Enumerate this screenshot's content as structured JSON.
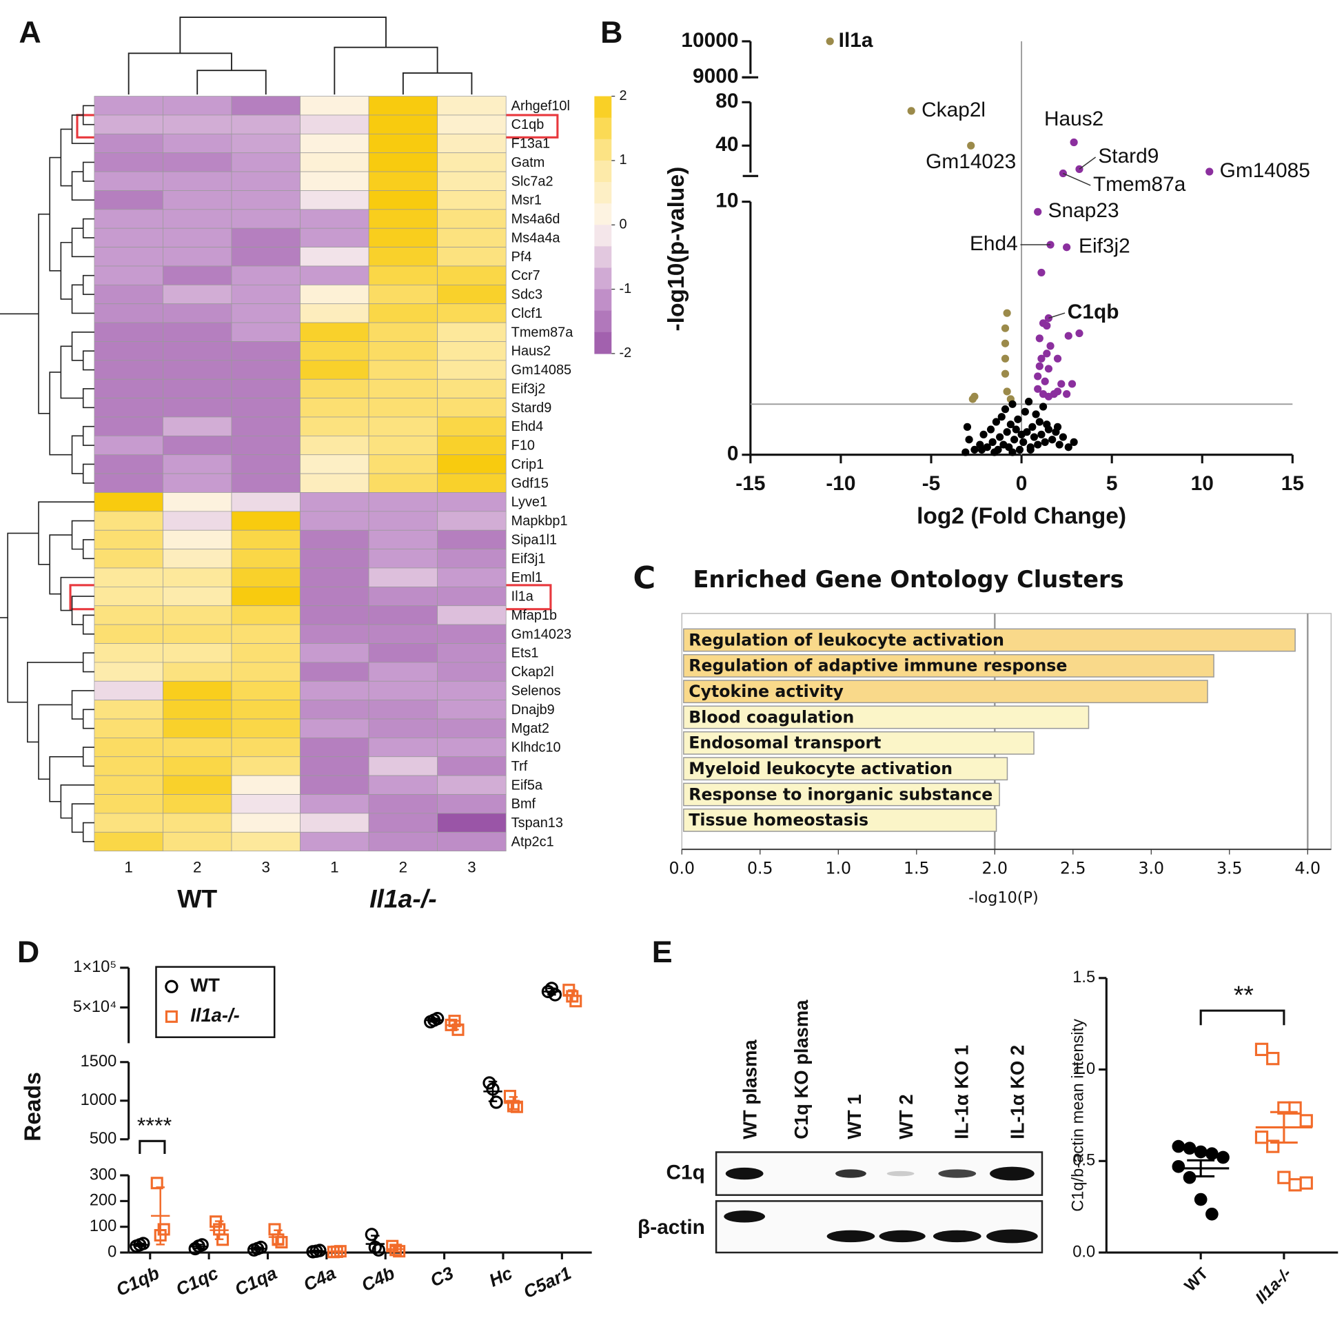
{
  "chart_data": [
    {
      "type": "heatmap",
      "panel": "A",
      "rows": [
        "Arhgef10l",
        "C1qb",
        "F13a1",
        "Gatm",
        "Slc7a2",
        "Msr1",
        "Ms4a6d",
        "Ms4a4a",
        "Pf4",
        "Ccr7",
        "Sdc3",
        "Clcf1",
        "Tmem87a",
        "Haus2",
        "Gm14085",
        "Eif3j2",
        "Stard9",
        "Ehd4",
        "F10",
        "Crip1",
        "Gdf15",
        "Lyve1",
        "Mapkbp1",
        "Sipa1l1",
        "Eif3j1",
        "Eml1",
        "Il1a",
        "Mfap1b",
        "Gm14023",
        "Ets1",
        "Ckap2l",
        "Selenos",
        "Dnajb9",
        "Mgat2",
        "Klhdc10",
        "Trf",
        "Eif5a",
        "Bmf",
        "Tspan13",
        "Atp2c1"
      ],
      "columns": [
        "1",
        "2",
        "3",
        "1",
        "2",
        "3"
      ],
      "groups": [
        "WT",
        "Il1a-/-"
      ],
      "values": [
        [
          -1,
          -1,
          -1.4,
          0.2,
          2,
          0.5
        ],
        [
          -0.8,
          -0.8,
          -0.8,
          -0.3,
          2,
          0.4
        ],
        [
          -1.2,
          -1,
          -0.9,
          0.2,
          2,
          0.6
        ],
        [
          -1.3,
          -1.3,
          -1,
          0.3,
          2,
          0.8
        ],
        [
          -1,
          -1,
          -1,
          0.2,
          1.9,
          0.8
        ],
        [
          -1.4,
          -1,
          -1,
          -0.2,
          2,
          1
        ],
        [
          -1,
          -1,
          -1,
          -1,
          1.9,
          1.2
        ],
        [
          -1,
          -1,
          -1.4,
          -1,
          1.9,
          1.2
        ],
        [
          -1,
          -1,
          -1.4,
          -0.2,
          1.8,
          1.2
        ],
        [
          -1,
          -1.4,
          -1,
          -1,
          1.6,
          1.6
        ],
        [
          -1.2,
          -0.8,
          -1,
          0.3,
          1.4,
          1.8
        ],
        [
          -1.2,
          -1.2,
          -1,
          0.6,
          1.6,
          1.5
        ],
        [
          -1.4,
          -1.4,
          -1,
          1.8,
          1.4,
          1
        ],
        [
          -1.4,
          -1.4,
          -1.4,
          1.6,
          1.4,
          1
        ],
        [
          -1.4,
          -1.4,
          -1.4,
          1.8,
          1.3,
          1
        ],
        [
          -1.4,
          -1.4,
          -1.4,
          1.4,
          1.3,
          1.2
        ],
        [
          -1.4,
          -1.4,
          -1.4,
          1.3,
          1.3,
          1.3
        ],
        [
          -1.4,
          -0.8,
          -1.4,
          1.2,
          1.2,
          1.6
        ],
        [
          -1,
          -1.4,
          -1.4,
          0.9,
          1.2,
          1.8
        ],
        [
          -1.4,
          -1,
          -1.4,
          0.5,
          1.3,
          2
        ],
        [
          -1.4,
          -1,
          -1.4,
          0.6,
          1.4,
          1.8
        ],
        [
          2,
          0.2,
          -0.3,
          -1,
          -1,
          -1
        ],
        [
          1.2,
          -0.3,
          2,
          -1,
          -1,
          -0.8
        ],
        [
          1.3,
          0.3,
          1.6,
          -1.4,
          -1,
          -1.4
        ],
        [
          1.3,
          0.6,
          1.6,
          -1.4,
          -1,
          -1.2
        ],
        [
          1,
          1,
          1.8,
          -1.4,
          -0.6,
          -1
        ],
        [
          1,
          0.8,
          2,
          -1.4,
          -1.2,
          -1.2
        ],
        [
          1.2,
          1.2,
          1.5,
          -1.4,
          -1.4,
          -0.6
        ],
        [
          1.3,
          1.3,
          1.3,
          -1.3,
          -1.3,
          -1.3
        ],
        [
          1,
          1,
          1.3,
          -1,
          -1.4,
          -1.2
        ],
        [
          0.8,
          1.2,
          1.3,
          -1.4,
          -1,
          -1.2
        ],
        [
          -0.3,
          1.9,
          1.5,
          -1,
          -1,
          -1
        ],
        [
          1.2,
          1.8,
          1.6,
          -1.2,
          -1.2,
          -1
        ],
        [
          1.3,
          1.8,
          1.6,
          -1,
          -1.2,
          -1.2
        ],
        [
          1.4,
          1.4,
          1.4,
          -1.4,
          -1,
          -1
        ],
        [
          1.4,
          1.6,
          1.2,
          -1.4,
          -0.5,
          -1.3
        ],
        [
          1.4,
          1.8,
          0.2,
          -1.4,
          -1,
          -0.8
        ],
        [
          1.4,
          1.6,
          -0.2,
          -1,
          -1.3,
          -1.2
        ],
        [
          1.2,
          1.2,
          0.2,
          -0.3,
          -1.3,
          -2
        ],
        [
          1.6,
          1.2,
          1,
          -1,
          -1.2,
          -1.2
        ]
      ],
      "zlim": [
        -2,
        2
      ],
      "colorbar_ticks": [
        2,
        1,
        0,
        -1,
        -2
      ],
      "colormap": [
        "#9a55a7",
        "#c79bcf",
        "#fdf5ef",
        "#fde89b",
        "#f8cb0f"
      ]
    },
    {
      "type": "scatter",
      "panel": "B",
      "xlabel": "log2 (Fold Change)",
      "ylabel": "-log10(p-value)",
      "xlim": [
        -15,
        15
      ],
      "xticks": [
        -15,
        -10,
        -5,
        0,
        5,
        10,
        15
      ],
      "ysegments": [
        [
          0,
          10
        ],
        [
          12,
          80
        ],
        [
          9000,
          10000
        ]
      ],
      "yticks": [
        0,
        10,
        40,
        80,
        9000,
        10000
      ],
      "hline": 2,
      "vline": 0,
      "series": [
        {
          "color": "#9b8a4a",
          "x": [
            -10.6,
            -6.1,
            -2.8,
            -0.8,
            -0.9,
            -0.9,
            -0.9,
            -0.9,
            -0.8,
            -2.6,
            -2.7,
            -0.6
          ],
          "y": [
            10000,
            72,
            40,
            5.6,
            5.0,
            4.4,
            3.8,
            3.2,
            2.5,
            2.3,
            2.2,
            2.2
          ],
          "labels": [
            "Il1a",
            "Ckap2l",
            "Gm14023",
            null,
            null,
            null,
            null,
            null,
            null,
            null,
            null,
            null
          ]
        },
        {
          "color": "#8b2f9e",
          "x": [
            2.9,
            3.2,
            2.3,
            10.4,
            0.9,
            1.6,
            2.5,
            1.5,
            1.1,
            1.2,
            1.4,
            3.2,
            2.6,
            1.0,
            1.6,
            1.4,
            1.1,
            2.0,
            1.0,
            1.5,
            0.9,
            1.3,
            2.2,
            2.8,
            0.9,
            1.2,
            1.8,
            2.0,
            2.5,
            1.5
          ],
          "y": [
            43,
            18.3,
            14.4,
            16,
            9.6,
            8.3,
            8.2,
            5.4,
            7.2,
            5.2,
            5.1,
            4.8,
            4.7,
            4.6,
            4.3,
            4.0,
            3.8,
            3.8,
            3.5,
            3.4,
            3.1,
            2.9,
            2.8,
            2.8,
            2.6,
            2.4,
            2.4,
            2.5,
            2.4,
            2.3
          ],
          "labels": [
            "Haus2",
            "Stard9",
            "Tmem87a",
            "Gm14085",
            "Snap23",
            "Ehd4",
            "Eif3j2",
            "C1qb",
            null,
            null,
            null,
            null,
            null,
            null,
            null,
            null,
            null,
            null,
            null,
            null,
            null,
            null,
            null,
            null,
            null,
            null,
            null,
            null,
            null,
            null
          ]
        },
        {
          "color": "#000000",
          "x": [
            -3.1,
            -3.0,
            -2.9,
            -2.6,
            -2.3,
            -2.1,
            -1.9,
            -1.7,
            -1.6,
            -1.4,
            -1.3,
            -1.2,
            -1.1,
            -1.0,
            -0.9,
            -0.8,
            -0.7,
            -0.6,
            -0.5,
            -0.4,
            -0.3,
            -0.2,
            -0.1,
            0.1,
            0.2,
            0.3,
            0.4,
            0.5,
            0.6,
            0.7,
            0.8,
            0.9,
            1.0,
            1.1,
            1.2,
            1.3,
            1.5,
            1.7,
            1.9,
            2.1,
            2.3,
            2.6,
            2.9,
            -0.5,
            0.5,
            -1.5,
            1.4,
            0.0,
            -2.2,
            2.0
          ],
          "y": [
            0.1,
            1.1,
            0.6,
            0.2,
            0.4,
            0.8,
            0.3,
            1.0,
            0.5,
            1.3,
            0.2,
            0.7,
            1.5,
            0.4,
            1.8,
            0.9,
            0.3,
            1.2,
            2.0,
            0.6,
            1.0,
            1.4,
            0.2,
            0.5,
            1.7,
            0.9,
            2.1,
            0.3,
            1.1,
            0.7,
            1.6,
            0.4,
            1.3,
            0.8,
            1.9,
            0.5,
            1.0,
            0.6,
            0.9,
            0.4,
            0.7,
            0.3,
            0.5,
            0.1,
            0.2,
            0.1,
            1.2,
            0.8,
            0.2,
            1.1
          ]
        }
      ]
    },
    {
      "type": "hbar",
      "panel": "C",
      "title": "Enriched Gene Ontology Clusters",
      "xlabel": "-log10(P)",
      "categories": [
        "Regulation of leukocyte activation",
        "Regulation of adaptive immune response",
        "Cytokine activity",
        "Blood coagulation",
        "Endosomal transport",
        "Myeloid leukocyte activation",
        "Response to inorganic substance",
        "Tissue homeostasis"
      ],
      "values": [
        3.92,
        3.4,
        3.36,
        2.6,
        2.25,
        2.08,
        2.03,
        2.01
      ],
      "colors": [
        "#f9d98a",
        "#f9d98a",
        "#f9d98a",
        "#fbf5c8",
        "#fbf5c8",
        "#fbf5c8",
        "#fbf5c8",
        "#fbf5c8"
      ],
      "label_colors": [
        "#111111",
        "#111111",
        "#111111",
        "#8a8a8a",
        "#8a8a8a",
        "#8a8a8a",
        "#8a8a8a",
        "#8a8a8a"
      ],
      "xlim": [
        0,
        4.15
      ],
      "xticks": [
        {
          "value": 0,
          "label": "0.0"
        },
        0.5,
        {
          "value": 1,
          "label": "1.0"
        },
        1.5,
        {
          "value": 2,
          "label": "2.0"
        },
        2.5,
        {
          "value": 3,
          "label": "3.0"
        },
        3.5,
        {
          "value": 4,
          "label": "4.0"
        }
      ],
      "reference_lines": [
        2,
        4
      ]
    },
    {
      "type": "dot",
      "panel": "D",
      "ylabel": "Reads",
      "legend": "upper left",
      "annotation": "****",
      "categories": [
        "C1qb",
        "C1qc",
        "C1qa",
        "C4a",
        "C4b",
        "C3",
        "Hc",
        "C5ar1"
      ],
      "ysegments": [
        [
          0,
          300
        ],
        [
          500,
          1500
        ],
        [
          5000,
          100000
        ]
      ],
      "yticks": [
        0,
        100,
        200,
        300,
        500,
        1000,
        1500,
        {
          "value": 50000,
          "label": "5×10⁴"
        },
        {
          "value": 100000,
          "label": "1×10⁵"
        }
      ],
      "series": [
        {
          "name": "WT",
          "color": "#000000",
          "marker": "circle",
          "values": [
            [
              25,
              30,
              35
            ],
            [
              15,
              25,
              30
            ],
            [
              10,
              15,
              20
            ],
            [
              3,
              5,
              8
            ],
            [
              70,
              20,
              10
            ],
            [
              32000,
              34000,
              36000
            ],
            [
              1230,
              1150,
              980
            ],
            [
              70000,
              74000,
              66000
            ]
          ]
        },
        {
          "name": "Il1a-/-",
          "color": "#f26b2a",
          "marker": "square",
          "values": [
            [
              270,
              67,
              90
            ],
            [
              120,
              90,
              50
            ],
            [
              90,
              50,
              40
            ],
            [
              2,
              3,
              5
            ],
            [
              25,
              10,
              5
            ],
            [
              28000,
              33000,
              22000
            ],
            [
              1060,
              930,
              920
            ],
            [
              72000,
              64000,
              58000
            ]
          ]
        }
      ]
    },
    {
      "type": "blot",
      "panel": "E",
      "lanes": [
        "WT plasma",
        "C1q KO plasma",
        "WT 1",
        "WT 2",
        "IL-1α KO 1",
        "IL-1α KO 2"
      ],
      "rows": [
        "C1q",
        "β-actin"
      ]
    },
    {
      "type": "strip",
      "ylabel": "C1q/b-actin mean intensity",
      "annotation": "**",
      "ylim": [
        0,
        1.5
      ],
      "yticks": [
        {
          "value": 0,
          "label": "0.0"
        },
        0.5,
        {
          "value": 1,
          "label": "1.0"
        },
        1.5
      ],
      "groups": [
        {
          "name": "WT",
          "color": "#000000",
          "marker": "circle",
          "values": [
            0.58,
            0.57,
            0.55,
            0.54,
            0.52,
            0.47,
            0.41,
            0.29,
            0.21
          ]
        },
        {
          "name": "Il1a-/-",
          "color": "#f26b2a",
          "marker": "square",
          "values": [
            1.11,
            1.06,
            0.79,
            0.79,
            0.72,
            0.63,
            0.58,
            0.41,
            0.37,
            0.38
          ]
        }
      ]
    }
  ]
}
